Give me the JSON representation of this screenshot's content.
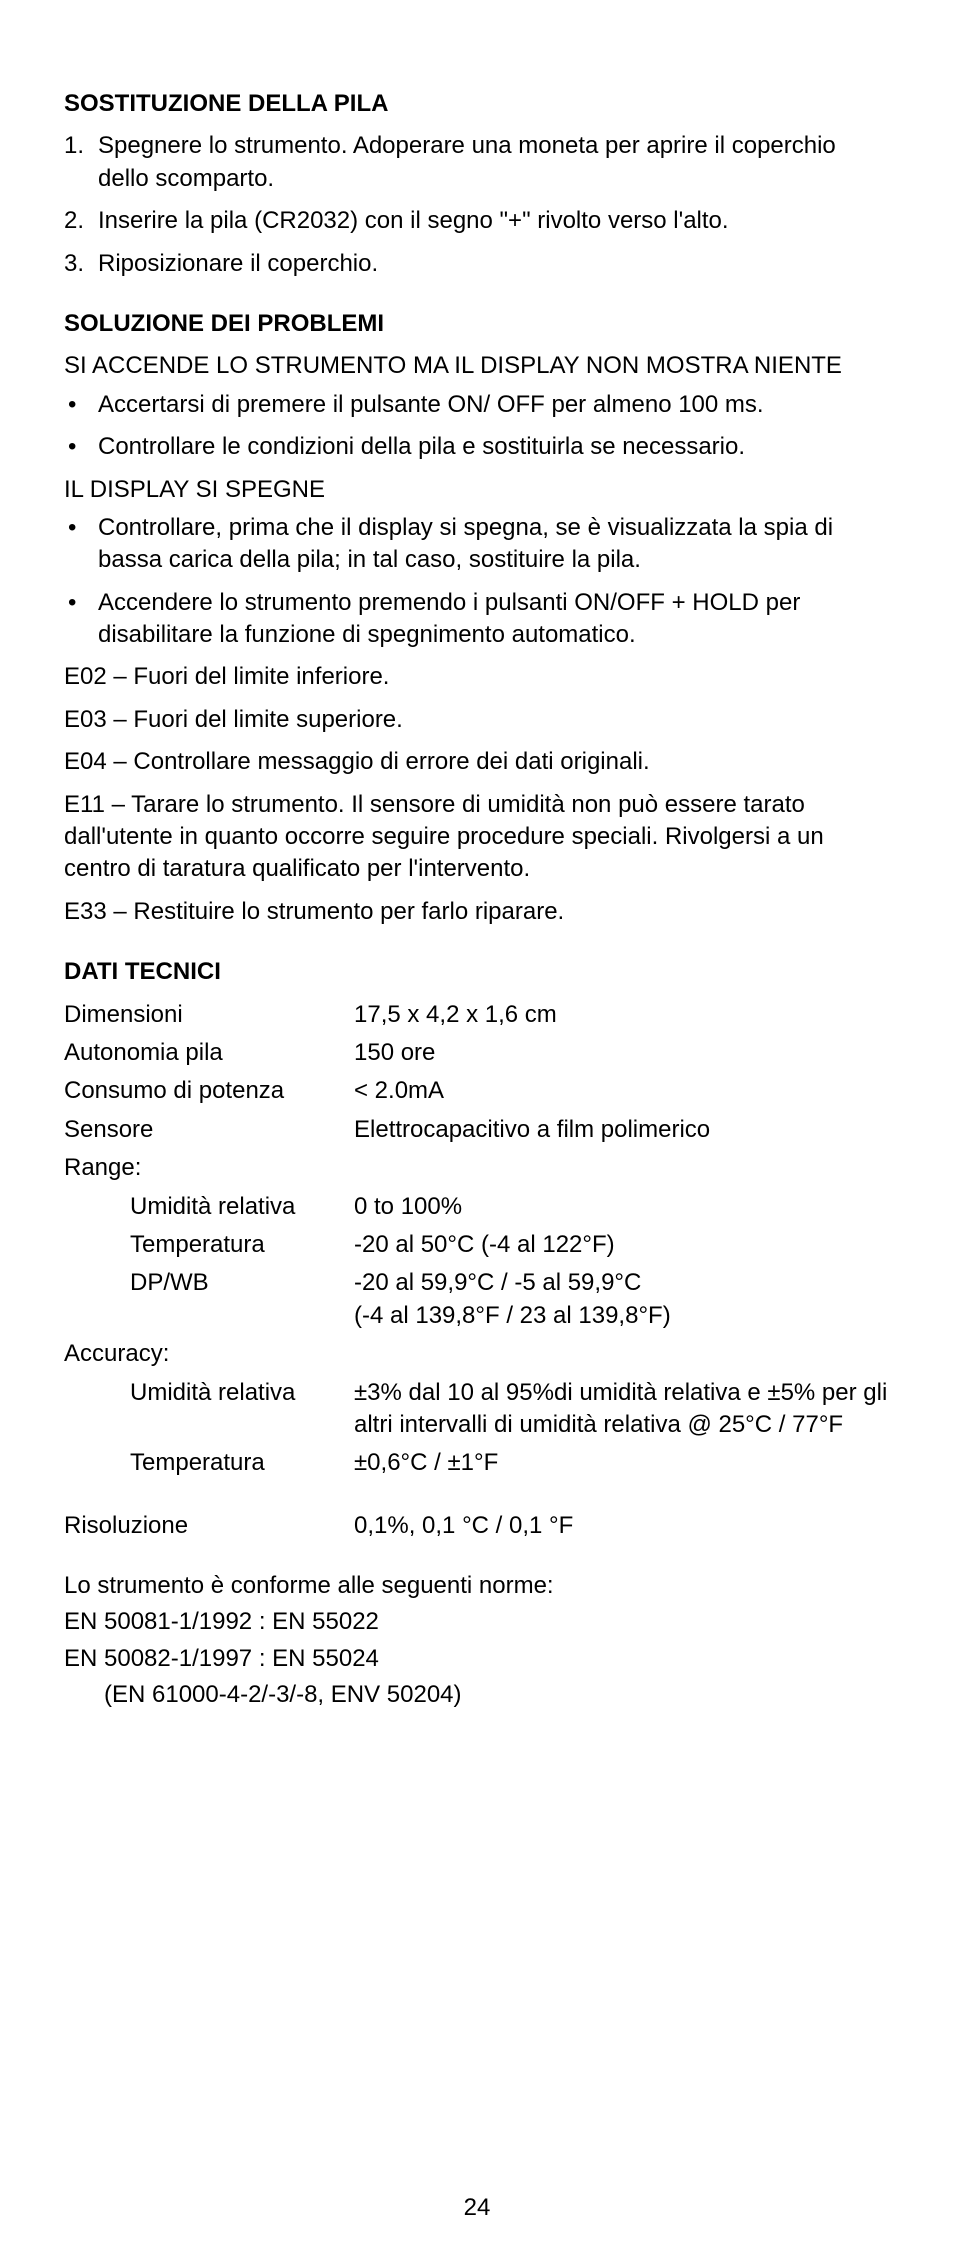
{
  "section1": {
    "heading": "SOSTITUZIONE DELLA PILA",
    "items": [
      "Spegnere lo strumento. Adoperare una moneta per aprire il coperchio dello scomparto.",
      "Inserire la pila (CR2032) con il segno \"+\" rivolto verso l'alto.",
      "Riposizionare il coperchio."
    ]
  },
  "section2": {
    "heading": "SOLUZIONE DEI PROBLEMI",
    "sub1": {
      "title": "SI ACCENDE LO STRUMENTO MA IL DISPLAY NON MOSTRA NIENTE",
      "items": [
        "Accertarsi di premere il pulsante ON/ OFF per almeno 100 ms.",
        "Controllare le condizioni della pila e sostituirla se necessario."
      ]
    },
    "sub2": {
      "title": "IL DISPLAY SI SPEGNE",
      "items": [
        "Controllare, prima che il display si spegna, se è visualizzata la spia di bassa carica della pila; in tal caso, sostituire la pila.",
        "Accendere lo strumento premendo i pulsanti ON/OFF + HOLD per disabilitare la funzione di spegnimento automatico."
      ]
    },
    "errors": [
      "E02 – Fuori del limite inferiore.",
      "E03 – Fuori del limite superiore.",
      "E04 – Controllare messaggio di errore dei dati originali.",
      "E11 – Tarare lo strumento. Il sensore di umidità non può essere tarato dall'utente in quanto occorre seguire procedure speciali. Rivolgersi a un centro di taratura qualificato per l'intervento.",
      "E33 – Restituire lo strumento per farlo riparare."
    ]
  },
  "section3": {
    "heading": "DATI TECNICI",
    "rows": [
      {
        "label": "Dimensioni",
        "value": "17,5 x 4,2 x 1,6 cm"
      },
      {
        "label": "Autonomia pila",
        "value": "150 ore"
      },
      {
        "label": "Consumo di potenza",
        "value": "< 2.0mA"
      },
      {
        "label": "Sensore",
        "value": "Elettrocapacitivo a film polimerico"
      }
    ],
    "range": {
      "label": "Range:",
      "rows": [
        {
          "label": "Umidità relativa",
          "value": "0 to 100%"
        },
        {
          "label": "Temperatura",
          "value": "-20 al 50°C (-4 al 122°F)"
        },
        {
          "label": "DP/WB",
          "value": "-20 al 59,9°C / -5 al 59,9°C\n(-4 al 139,8°F / 23 al 139,8°F)"
        }
      ]
    },
    "accuracy": {
      "label": "Accuracy:",
      "rows": [
        {
          "label": "Umidità relativa",
          "value": "±3% dal 10 al 95%di umidità relativa e ±5% per gli altri intervalli di umidità relativa @ 25°C / 77°F"
        },
        {
          "label": "Temperatura",
          "value": "±0,6°C / ±1°F"
        }
      ]
    },
    "resolution": {
      "label": "Risoluzione",
      "value": "0,1%, 0,1 °C / 0,1 °F"
    }
  },
  "compliance": {
    "intro": "Lo strumento è conforme alle seguenti norme:",
    "lines": [
      "EN 50081-1/1992 : EN 55022",
      "EN 50082-1/1997 : EN 55024"
    ],
    "sub": "(EN 61000-4-2/-3/-8, ENV 50204)"
  },
  "pageNumber": "24"
}
